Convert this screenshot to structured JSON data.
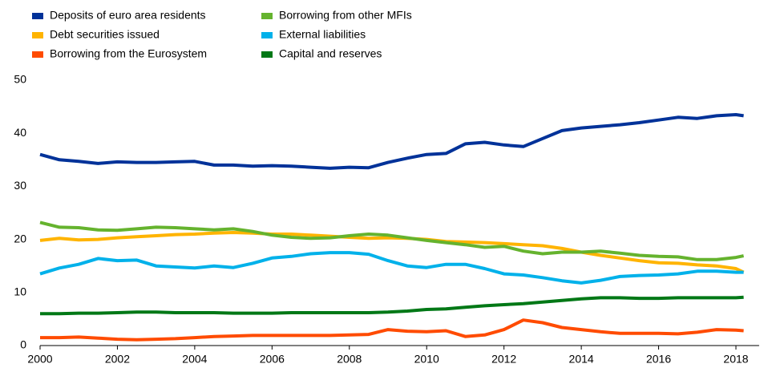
{
  "chart_data": {
    "type": "line",
    "x": [
      2000,
      2000.5,
      2001,
      2001.5,
      2002,
      2002.5,
      2003,
      2003.5,
      2004,
      2004.5,
      2005,
      2005.5,
      2006,
      2006.5,
      2007,
      2007.5,
      2008,
      2008.5,
      2009,
      2009.5,
      2010,
      2010.5,
      2011,
      2011.5,
      2012,
      2012.5,
      2013,
      2013.5,
      2014,
      2014.5,
      2015,
      2015.5,
      2016,
      2016.5,
      2017,
      2017.5,
      2018,
      2018.2
    ],
    "series": [
      {
        "name": "Deposits of euro area residents",
        "color": "#003299",
        "values": [
          36,
          35,
          34.7,
          34.3,
          34.6,
          34.5,
          34.5,
          34.6,
          34.7,
          34,
          34,
          33.8,
          33.9,
          33.8,
          33.6,
          33.4,
          33.6,
          33.5,
          34.5,
          35.3,
          36,
          36.2,
          38,
          38.3,
          37.8,
          37.5,
          39,
          40.5,
          41,
          41.3,
          41.6,
          42,
          42.5,
          43,
          42.8,
          43.3,
          43.5,
          43.3
        ]
      },
      {
        "name": "Debt securities issued",
        "color": "#ffb400",
        "values": [
          19.8,
          20.2,
          19.9,
          20,
          20.3,
          20.5,
          20.7,
          20.9,
          21,
          21.2,
          21.3,
          21.2,
          21,
          21,
          20.8,
          20.6,
          20.4,
          20.2,
          20.3,
          20.2,
          20,
          19.6,
          19.5,
          19.4,
          19.2,
          19,
          18.8,
          18.3,
          17.6,
          17,
          16.5,
          16,
          15.6,
          15.5,
          15.2,
          15,
          14.5,
          13.8
        ]
      },
      {
        "name": "Borrowing from the Eurosystem",
        "color": "#ff4b00",
        "values": [
          1.5,
          1.5,
          1.6,
          1.4,
          1.2,
          1.1,
          1.2,
          1.3,
          1.5,
          1.7,
          1.8,
          1.9,
          1.9,
          1.9,
          1.9,
          1.9,
          2,
          2.1,
          3,
          2.7,
          2.6,
          2.8,
          1.7,
          2,
          3,
          4.8,
          4.3,
          3.4,
          3,
          2.6,
          2.3,
          2.3,
          2.3,
          2.2,
          2.5,
          3,
          2.9,
          2.8
        ]
      },
      {
        "name": "Borrowing from other MFIs",
        "color": "#65b32e",
        "values": [
          23.2,
          22.3,
          22.2,
          21.8,
          21.7,
          22,
          22.3,
          22.2,
          22,
          21.8,
          22,
          21.5,
          20.8,
          20.4,
          20.2,
          20.3,
          20.7,
          21,
          20.8,
          20.3,
          19.8,
          19.4,
          19,
          18.5,
          18.7,
          17.8,
          17.3,
          17.6,
          17.6,
          17.8,
          17.4,
          17,
          16.8,
          16.7,
          16.2,
          16.2,
          16.6,
          16.9
        ]
      },
      {
        "name": "External liabilities",
        "color": "#00b1ea",
        "values": [
          13.5,
          14.6,
          15.3,
          16.4,
          16,
          16.1,
          15,
          14.8,
          14.6,
          15,
          14.7,
          15.5,
          16.5,
          16.8,
          17.3,
          17.5,
          17.5,
          17.2,
          16,
          15,
          14.7,
          15.3,
          15.3,
          14.5,
          13.5,
          13.3,
          12.8,
          12.2,
          11.8,
          12.3,
          13,
          13.2,
          13.3,
          13.5,
          14,
          14,
          13.8,
          13.8
        ]
      },
      {
        "name": "Capital and reserves",
        "color": "#007816",
        "values": [
          6,
          6,
          6.1,
          6.1,
          6.2,
          6.3,
          6.3,
          6.2,
          6.2,
          6.2,
          6.1,
          6.1,
          6.1,
          6.2,
          6.2,
          6.2,
          6.2,
          6.2,
          6.3,
          6.5,
          6.8,
          6.9,
          7.2,
          7.5,
          7.7,
          7.9,
          8.2,
          8.5,
          8.8,
          9,
          9,
          8.9,
          8.9,
          9,
          9,
          9,
          9,
          9.1
        ]
      }
    ],
    "xlim": [
      2000,
      2018.6
    ],
    "xticks": [
      2000,
      2002,
      2004,
      2006,
      2008,
      2010,
      2012,
      2014,
      2016,
      2018
    ],
    "ylim": [
      0,
      50
    ],
    "yticks": [
      0,
      10,
      20,
      30,
      40,
      50
    ]
  }
}
